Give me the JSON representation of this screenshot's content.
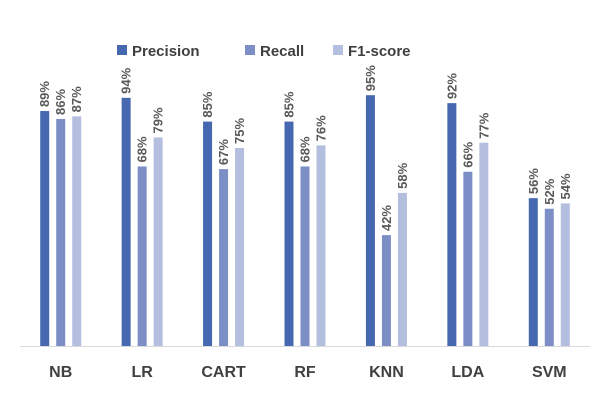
{
  "chart_data": {
    "type": "bar",
    "categories": [
      "NB",
      "LR",
      "CART",
      "RF",
      "KNN",
      "LDA",
      "SVM"
    ],
    "series": [
      {
        "name": "Precision",
        "values": [
          89,
          94,
          85,
          85,
          95,
          92,
          56
        ],
        "color": "#4568B0"
      },
      {
        "name": "Recall",
        "values": [
          86,
          68,
          67,
          68,
          42,
          66,
          52
        ],
        "color": "#7B8FC6"
      },
      {
        "name": "F1-score",
        "values": [
          87,
          79,
          75,
          76,
          58,
          77,
          54
        ],
        "color": "#B4BEDF"
      }
    ],
    "value_suffix": "%",
    "ylim": [
      0,
      100
    ],
    "grid": false,
    "legend_position": "top",
    "data_labels": "rotated-vertical",
    "title": "",
    "xlabel": "",
    "ylabel": "",
    "axis_color": "#D9D9D9",
    "label_color": "#595959"
  }
}
